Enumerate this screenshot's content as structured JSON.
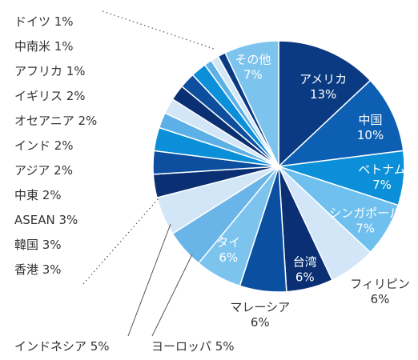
{
  "chart_data": {
    "type": "pie",
    "title": "",
    "unit": "%",
    "slices": [
      {
        "name": "アメリカ",
        "value": 13,
        "color": "#0a3a82",
        "text_color": "#ffffff"
      },
      {
        "name": "中国",
        "value": 10,
        "color": "#0d5fb4",
        "text_color": "#ffffff"
      },
      {
        "name": "ベトナム",
        "value": 7,
        "color": "#0a8fd8",
        "text_color": "#ffffff"
      },
      {
        "name": "シンガポール",
        "value": 7,
        "color": "#6fc0ee",
        "text_color": "#ffffff"
      },
      {
        "name": "フィリピン",
        "value": 6,
        "color": "#d3e6f7",
        "text_color": "#333333"
      },
      {
        "name": "台湾",
        "value": 6,
        "color": "#0a2f72",
        "text_color": "#ffffff"
      },
      {
        "name": "マレーシア",
        "value": 6,
        "color": "#0b4fa0",
        "text_color": "#333333"
      },
      {
        "name": "タイ",
        "value": 6,
        "color": "#7cc4ee",
        "text_color": "#ffffff"
      },
      {
        "name": "ヨーロッパ",
        "value": 5,
        "color": "#6ab5e8",
        "text_color": "#333333"
      },
      {
        "name": "インドネシア",
        "value": 5,
        "color": "#d3e6f7",
        "text_color": "#333333"
      },
      {
        "name": "香港",
        "value": 3,
        "color": "#0a2f72",
        "text_color": "#333333"
      },
      {
        "name": "韓国",
        "value": 3,
        "color": "#0d4f9e",
        "text_color": "#333333"
      },
      {
        "name": "ASEAN",
        "value": 3,
        "color": "#0a8fd8",
        "text_color": "#333333"
      },
      {
        "name": "中東",
        "value": 2,
        "color": "#5db0e6",
        "text_color": "#333333"
      },
      {
        "name": "アジア",
        "value": 2,
        "color": "#d3e6f7",
        "text_color": "#333333"
      },
      {
        "name": "インド",
        "value": 2,
        "color": "#0a2f72",
        "text_color": "#333333"
      },
      {
        "name": "オセアニア",
        "value": 2,
        "color": "#0d4f9e",
        "text_color": "#333333"
      },
      {
        "name": "イギリス",
        "value": 2,
        "color": "#0a8fd8",
        "text_color": "#333333"
      },
      {
        "name": "アフリカ",
        "value": 1,
        "color": "#5db0e6",
        "text_color": "#333333"
      },
      {
        "name": "中南米",
        "value": 1,
        "color": "#d3e6f7",
        "text_color": "#333333"
      },
      {
        "name": "ドイツ",
        "value": 1,
        "color": "#0a3a82",
        "text_color": "#333333"
      },
      {
        "name": "その他",
        "value": 7,
        "color": "#7cc4ee",
        "text_color": "#ffffff"
      }
    ],
    "legend_list_order": [
      "ドイツ",
      "中南米",
      "アフリカ",
      "イギリス",
      "オセアニア",
      "インド",
      "アジア",
      "中東",
      "ASEAN",
      "韓国",
      "香港"
    ],
    "legend_placement": "left"
  }
}
